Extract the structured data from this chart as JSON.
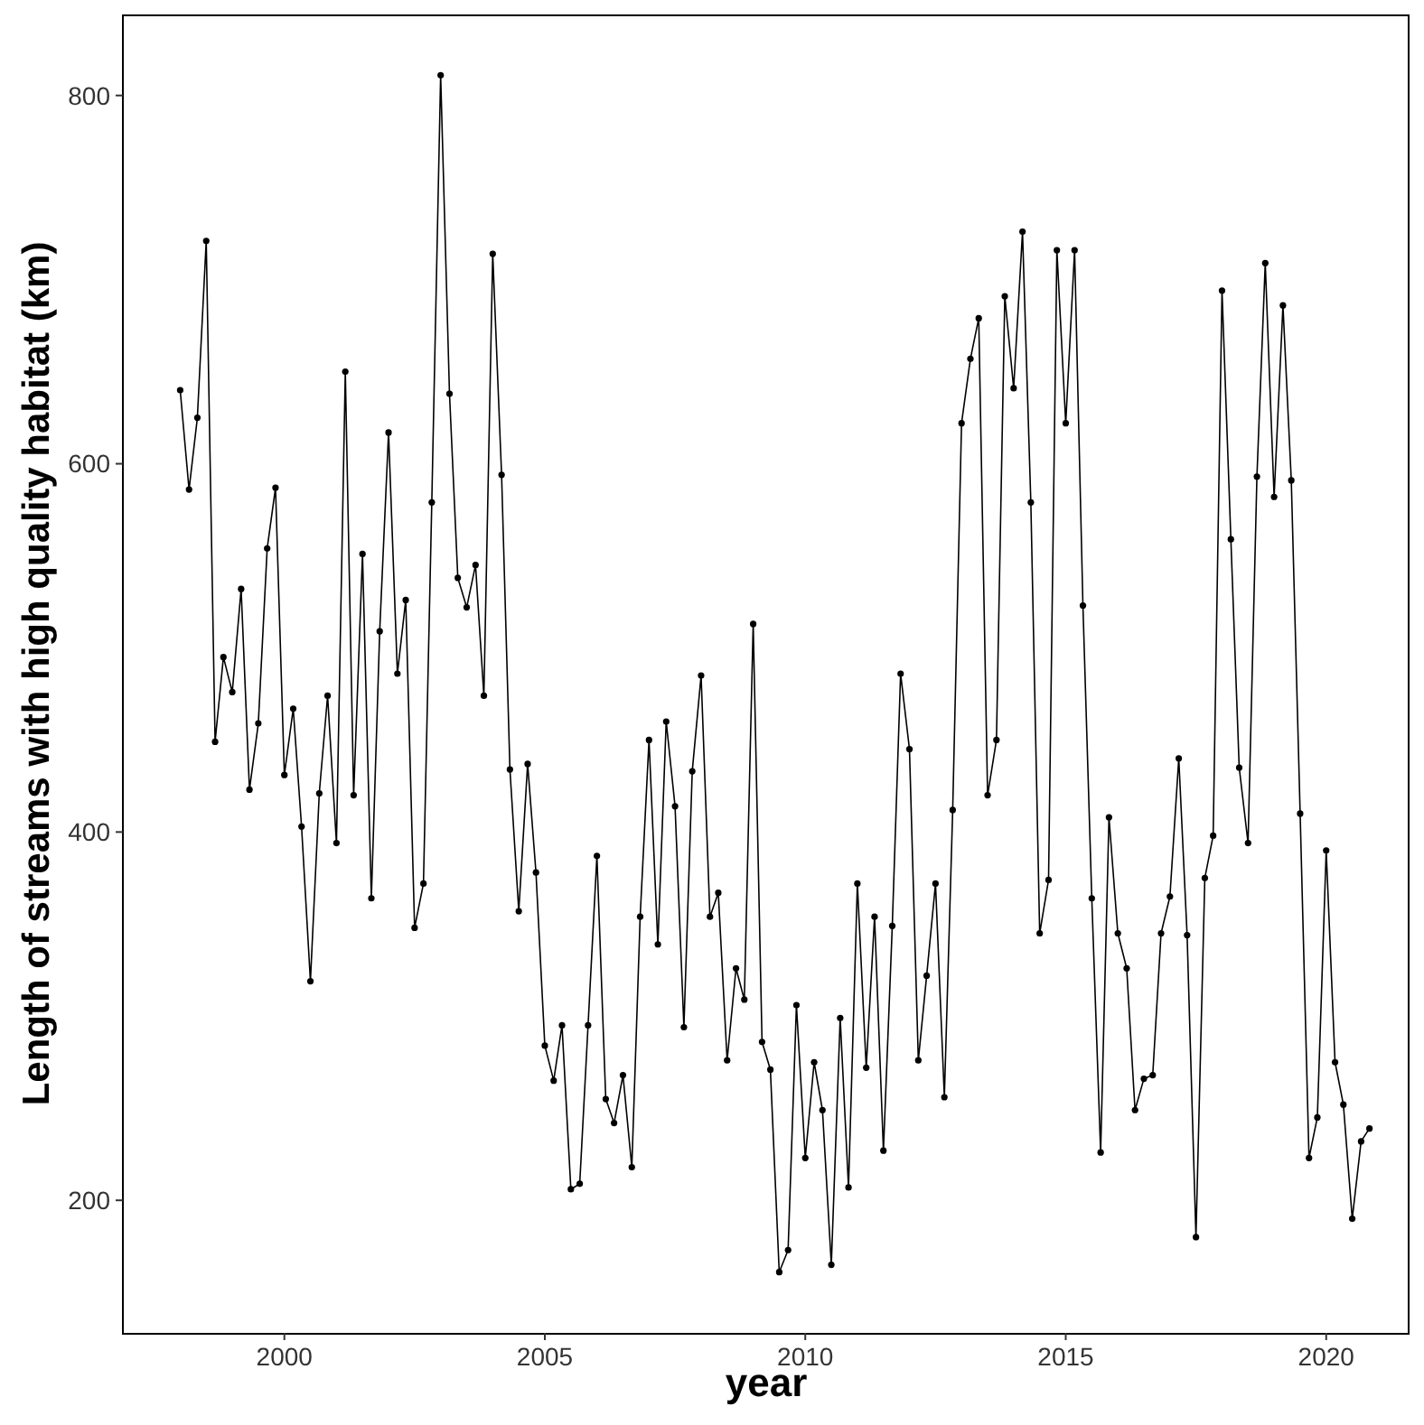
{
  "chart_data": {
    "type": "line",
    "xlabel": "year",
    "ylabel": "Length of streams with high quality habitat (km)",
    "xlim": [
      1996.9,
      2021.6
    ],
    "xticks": [
      2000,
      2005,
      2010,
      2015,
      2020
    ],
    "ylim": [
      128,
      844
    ],
    "yticks": [
      200,
      400,
      600,
      800
    ],
    "grid": false,
    "marker": "circle",
    "line_style": "solid",
    "series": [
      {
        "color": "#000000",
        "x": [
          1998,
          1998.17,
          1998.33,
          1998.5,
          1998.67,
          1998.83,
          1999,
          1999.17,
          1999.33,
          1999.5,
          1999.67,
          1999.83,
          2000,
          2000.17,
          2000.33,
          2000.5,
          2000.67,
          2000.83,
          2001,
          2001.17,
          2001.33,
          2001.5,
          2001.67,
          2001.83,
          2002,
          2002.17,
          2002.33,
          2002.5,
          2002.67,
          2002.83,
          2003,
          2003.17,
          2003.33,
          2003.5,
          2003.67,
          2003.83,
          2004,
          2004.17,
          2004.33,
          2004.5,
          2004.67,
          2004.83,
          2005,
          2005.17,
          2005.33,
          2005.5,
          2005.67,
          2005.83,
          2006,
          2006.17,
          2006.33,
          2006.5,
          2006.67,
          2006.83,
          2007,
          2007.17,
          2007.33,
          2007.5,
          2007.67,
          2007.83,
          2008,
          2008.17,
          2008.33,
          2008.5,
          2008.67,
          2008.83,
          2009,
          2009.17,
          2009.33,
          2009.5,
          2009.67,
          2009.83,
          2010,
          2010.17,
          2010.33,
          2010.5,
          2010.67,
          2010.83,
          2011,
          2011.17,
          2011.33,
          2011.5,
          2011.67,
          2011.83,
          2012,
          2012.17,
          2012.33,
          2012.5,
          2012.67,
          2012.83,
          2013,
          2013.17,
          2013.33,
          2013.5,
          2013.67,
          2013.83,
          2014,
          2014.17,
          2014.33,
          2014.5,
          2014.67,
          2014.83,
          2015,
          2015.17,
          2015.33,
          2015.5,
          2015.67,
          2015.83,
          2016,
          2016.17,
          2016.33,
          2016.5,
          2016.67,
          2016.83,
          2017,
          2017.17,
          2017.33,
          2017.5,
          2017.67,
          2017.83,
          2018,
          2018.17,
          2018.33,
          2018.5,
          2018.67,
          2018.83,
          2019,
          2019.17,
          2019.33,
          2019.5,
          2019.67,
          2019.83,
          2020,
          2020.17,
          2020.33,
          2020.5,
          2020.67,
          2020.83
        ],
        "values": [
          640,
          586,
          625,
          721,
          449,
          495,
          476,
          532,
          423,
          459,
          554,
          587,
          431,
          467,
          403,
          319,
          421,
          474,
          394,
          650,
          420,
          551,
          364,
          509,
          617,
          486,
          526,
          348,
          372,
          579,
          811,
          638,
          538,
          522,
          545,
          474,
          714,
          594,
          434,
          357,
          437,
          378,
          284,
          265,
          295,
          206,
          209,
          295,
          387,
          255,
          242,
          268,
          218,
          354,
          450,
          339,
          460,
          414,
          294,
          433,
          485,
          354,
          367,
          276,
          326,
          309,
          513,
          286,
          271,
          161,
          173,
          306,
          223,
          275,
          249,
          165,
          299,
          207,
          372,
          272,
          354,
          227,
          349,
          486,
          445,
          276,
          322,
          372,
          256,
          412,
          622,
          657,
          679,
          420,
          450,
          691,
          641,
          726,
          579,
          345,
          374,
          716,
          622,
          716,
          523,
          364,
          226,
          408,
          345,
          326,
          249,
          266,
          268,
          345,
          365,
          440,
          344,
          180,
          375,
          398,
          694,
          559,
          435,
          394,
          593,
          709,
          582,
          686,
          591,
          410,
          223,
          245,
          390,
          275,
          252,
          190,
          232,
          239
        ]
      }
    ]
  }
}
